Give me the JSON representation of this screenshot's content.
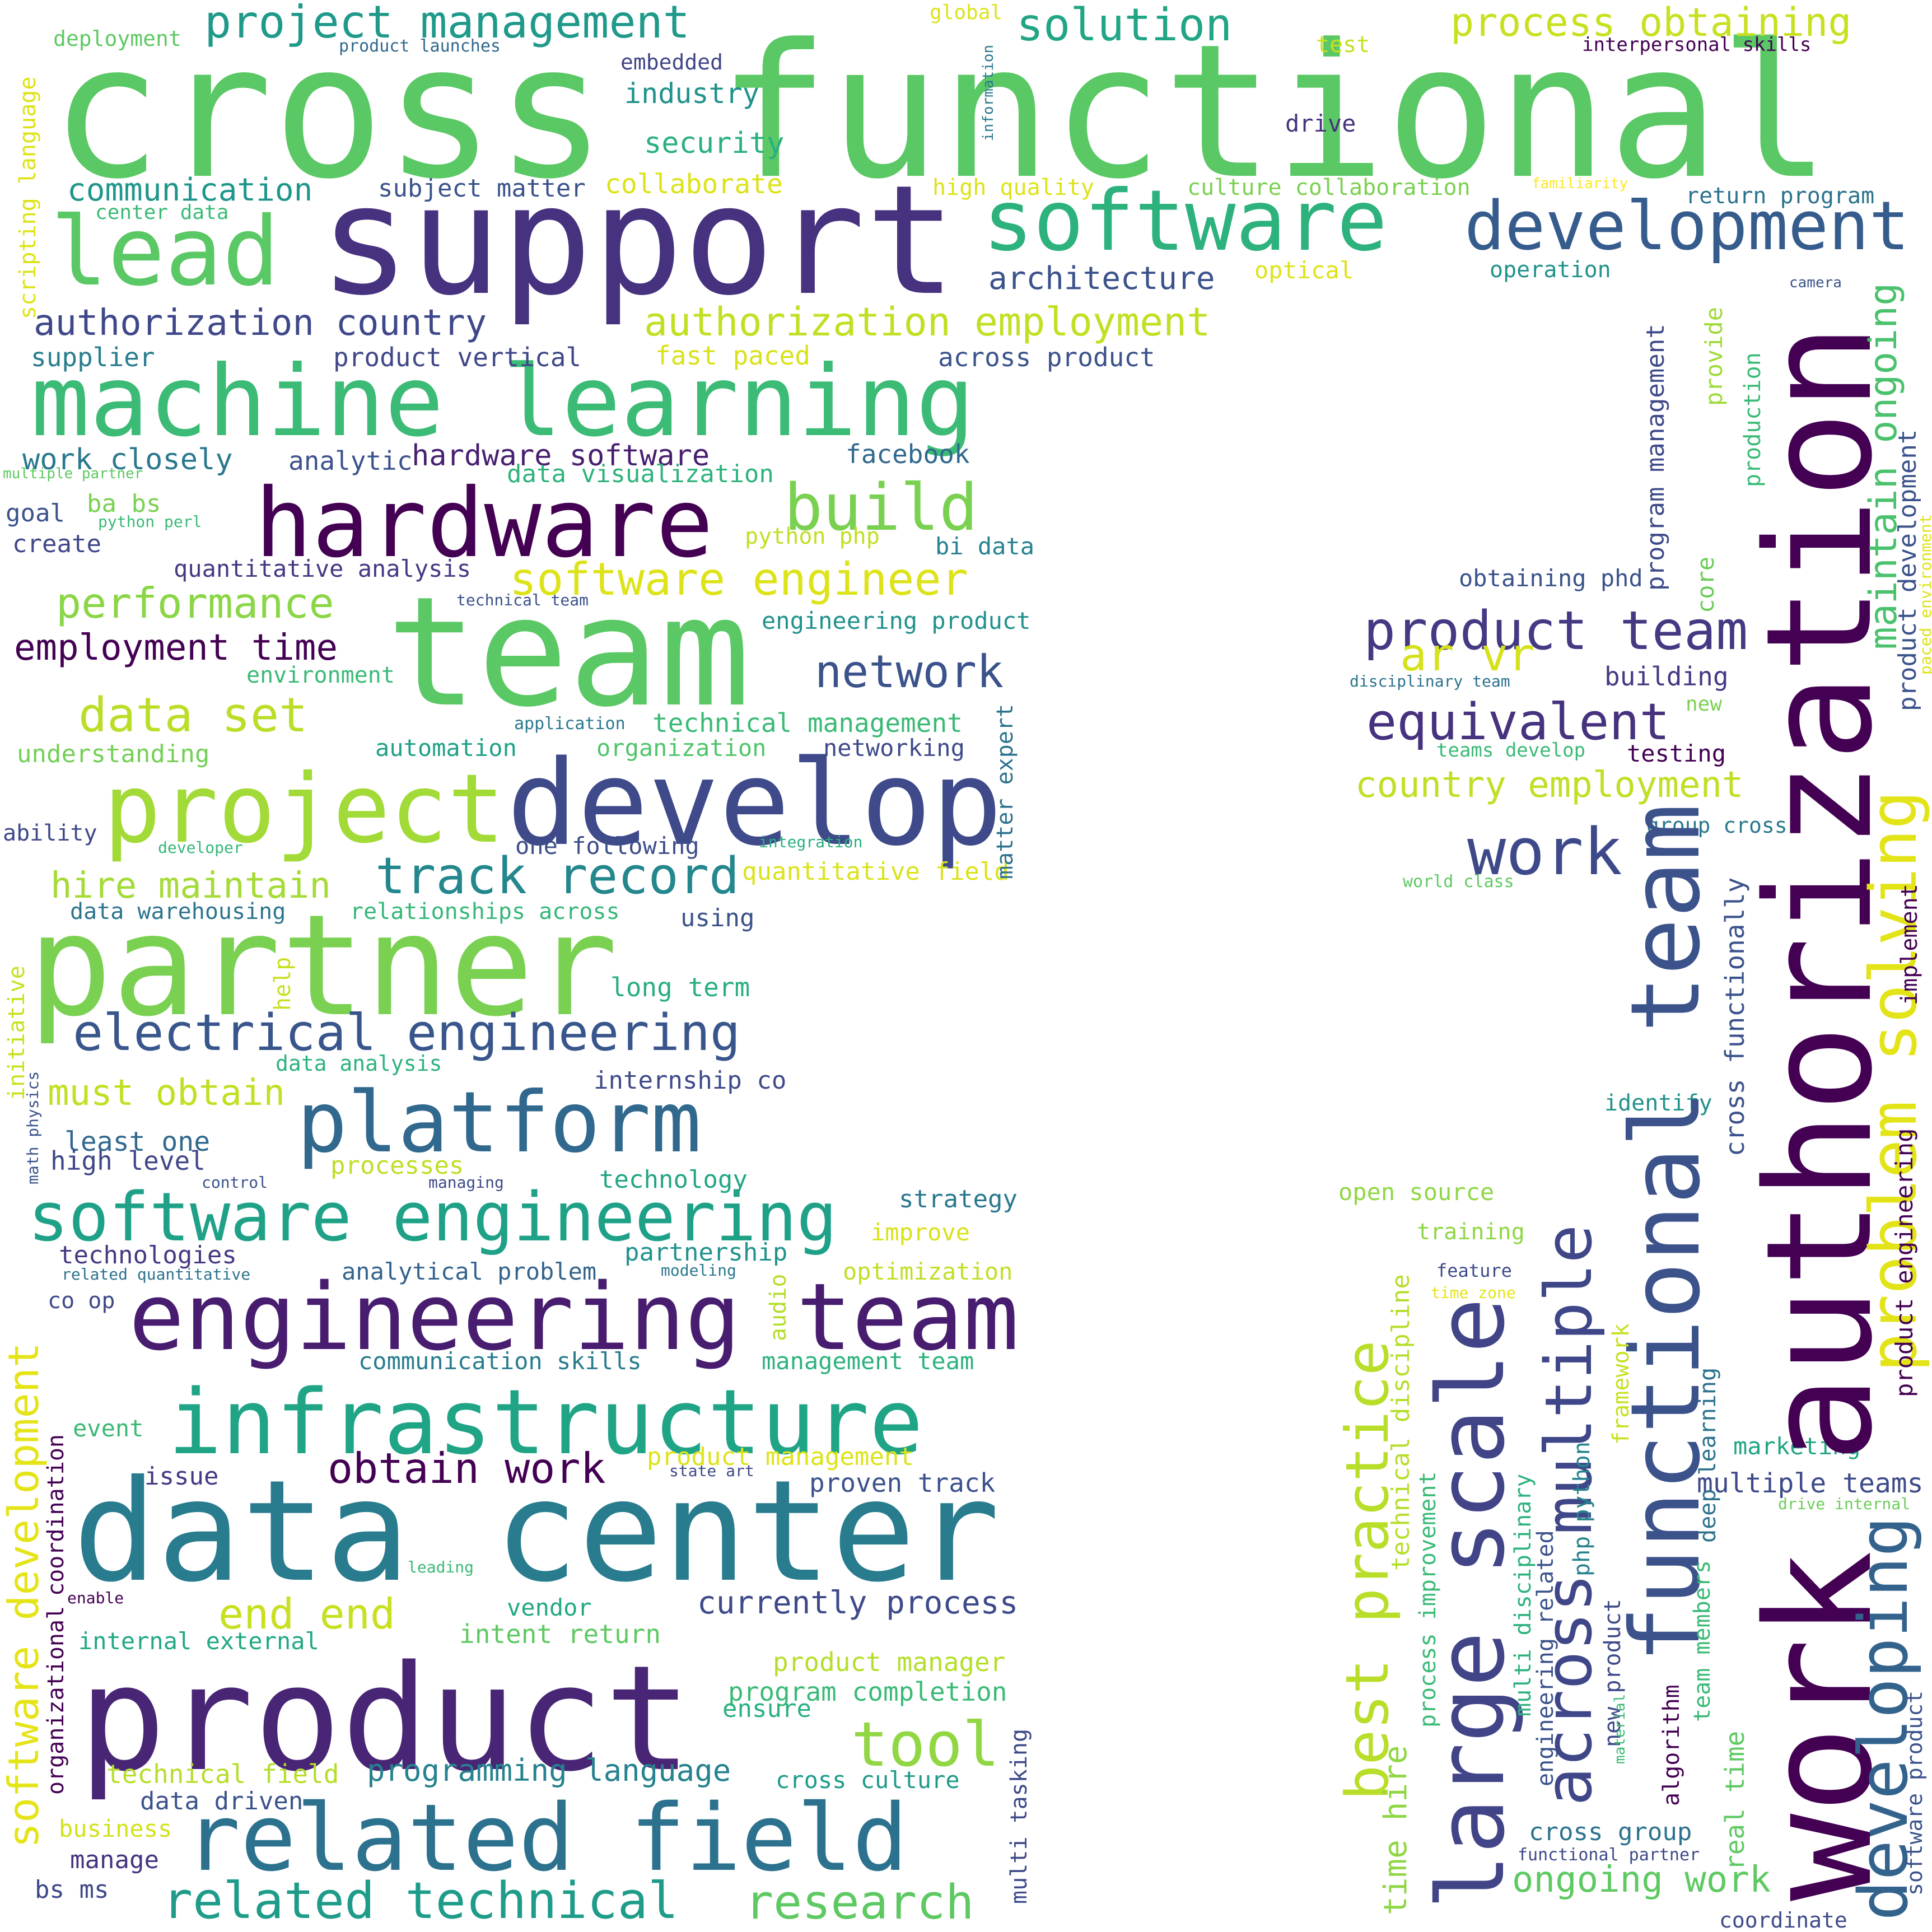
{
  "words": [
    {
      "text": "cross functional",
      "color": "#5ac864"
    },
    {
      "text": "support",
      "color": "#46327e"
    },
    {
      "text": "software",
      "color": "#2db27d"
    },
    {
      "text": "development",
      "color": "#365c8d"
    },
    {
      "text": "lead",
      "color": "#5ac864"
    },
    {
      "text": "project management",
      "color": "#1f9a8a"
    },
    {
      "text": "solution",
      "color": "#21a585"
    },
    {
      "text": "process obtaining",
      "color": "#c8e020"
    },
    {
      "text": "machine learning",
      "color": "#3bbb75"
    },
    {
      "text": "hardware",
      "color": "#440154"
    },
    {
      "text": "build",
      "color": "#7ad151"
    },
    {
      "text": "team",
      "color": "#5ac864"
    },
    {
      "text": "partner",
      "color": "#7ad151"
    },
    {
      "text": "develop",
      "color": "#3e4a89"
    },
    {
      "text": "project",
      "color": "#a2da37"
    },
    {
      "text": "platform",
      "color": "#31688e"
    },
    {
      "text": "software engineering",
      "color": "#1fa188"
    },
    {
      "text": "engineering team",
      "color": "#481d6f"
    },
    {
      "text": "infrastructure",
      "color": "#20a486"
    },
    {
      "text": "data center",
      "color": "#287c8e"
    },
    {
      "text": "product",
      "color": "#482575"
    },
    {
      "text": "related field",
      "color": "#2c728e"
    },
    {
      "text": "related technical",
      "color": "#1e9c89"
    },
    {
      "text": "research",
      "color": "#5ec962"
    },
    {
      "text": "work authorization",
      "color": "#440154"
    },
    {
      "text": "functional team",
      "color": "#3b528b"
    },
    {
      "text": "large scale",
      "color": "#414487"
    },
    {
      "text": "across multiple",
      "color": "#3f4788"
    },
    {
      "text": "best practice",
      "color": "#b8de29"
    },
    {
      "text": "problem solving",
      "color": "#e3e418"
    },
    {
      "text": "developing",
      "color": "#33638d"
    },
    {
      "text": "product team",
      "color": "#443a83"
    },
    {
      "text": "equivalent",
      "color": "#46327e"
    },
    {
      "text": "work",
      "color": "#3e4989"
    },
    {
      "text": "network",
      "color": "#3b528b"
    },
    {
      "text": "track record",
      "color": "#24878e"
    },
    {
      "text": "electrical engineering",
      "color": "#39568c"
    },
    {
      "text": "software engineer",
      "color": "#dde318"
    },
    {
      "text": "authorization employment",
      "color": "#c2df23"
    },
    {
      "text": "authorization country",
      "color": "#3f4889"
    },
    {
      "text": "data set",
      "color": "#bade28"
    },
    {
      "text": "performance",
      "color": "#8bd646"
    },
    {
      "text": "employment time",
      "color": "#440154"
    },
    {
      "text": "hire maintain",
      "color": "#a5db36"
    },
    {
      "text": "tool",
      "color": "#90d743"
    },
    {
      "text": "obtain work",
      "color": "#440154"
    },
    {
      "text": "end end",
      "color": "#c8e020"
    },
    {
      "text": "software development",
      "color": "#e5e419"
    },
    {
      "text": "ongoing work",
      "color": "#5ec962"
    },
    {
      "text": "country employment",
      "color": "#c0df25"
    },
    {
      "text": "maintain ongoing",
      "color": "#4ac16d"
    },
    {
      "text": "ar vr",
      "color": "#d5e21a"
    },
    {
      "text": "currently process",
      "color": "#3e4a89"
    },
    {
      "text": "must obtain",
      "color": "#c2df23"
    },
    {
      "text": "architecture",
      "color": "#3b528b"
    },
    {
      "text": "communication",
      "color": "#1f968b"
    },
    {
      "text": "security",
      "color": "#2ab07f"
    },
    {
      "text": "industry",
      "color": "#20928c"
    },
    {
      "text": "collaborate",
      "color": "#dde318"
    },
    {
      "text": "product vertical",
      "color": "#3f4788"
    },
    {
      "text": "fast paced",
      "color": "#d8e219"
    },
    {
      "text": "across product",
      "color": "#3b528b"
    },
    {
      "text": "supplier",
      "color": "#287d8e"
    },
    {
      "text": "work closely",
      "color": "#2a788e"
    },
    {
      "text": "analytic",
      "color": "#3b528b"
    },
    {
      "text": "hardware software",
      "color": "#481f70"
    },
    {
      "text": "data visualization",
      "color": "#2eb37c"
    },
    {
      "text": "facebook",
      "color": "#31688e"
    },
    {
      "text": "goal",
      "color": "#3b528b"
    },
    {
      "text": "ba bs",
      "color": "#7ad151"
    },
    {
      "text": "create",
      "color": "#404688"
    },
    {
      "text": "python php",
      "color": "#c0df25"
    },
    {
      "text": "bi data",
      "color": "#26828e"
    },
    {
      "text": "quantitative analysis",
      "color": "#443983"
    },
    {
      "text": "engineering product",
      "color": "#21918c"
    },
    {
      "text": "environment",
      "color": "#3aba76"
    },
    {
      "text": "technical management",
      "color": "#3aba76"
    },
    {
      "text": "understanding",
      "color": "#73d056"
    },
    {
      "text": "automation",
      "color": "#1fa088"
    },
    {
      "text": "organization",
      "color": "#50c46a"
    },
    {
      "text": "networking",
      "color": "#3e4a89"
    },
    {
      "text": "ability",
      "color": "#3e4989"
    },
    {
      "text": "one following",
      "color": "#3d4e8a"
    },
    {
      "text": "quantitative field",
      "color": "#dae319"
    },
    {
      "text": "data warehousing",
      "color": "#2b748e"
    },
    {
      "text": "relationships across",
      "color": "#35b779"
    },
    {
      "text": "using",
      "color": "#3b528b"
    },
    {
      "text": "long term",
      "color": "#29af7f"
    },
    {
      "text": "data analysis",
      "color": "#2db27d"
    },
    {
      "text": "internship co",
      "color": "#3e4a89"
    },
    {
      "text": "least one",
      "color": "#31688e"
    },
    {
      "text": "high level",
      "color": "#404688"
    },
    {
      "text": "processes",
      "color": "#bddf26"
    },
    {
      "text": "technology",
      "color": "#21a685"
    },
    {
      "text": "technologies",
      "color": "#443983"
    },
    {
      "text": "strategy",
      "color": "#2a788e"
    },
    {
      "text": "improve",
      "color": "#d8e219"
    },
    {
      "text": "partnership",
      "color": "#20928c"
    },
    {
      "text": "optimization",
      "color": "#c0df25"
    },
    {
      "text": "analytical problem",
      "color": "#33638d"
    },
    {
      "text": "co op",
      "color": "#3e4a89"
    },
    {
      "text": "communication skills",
      "color": "#287c8e"
    },
    {
      "text": "management team",
      "color": "#2db27d"
    },
    {
      "text": "event",
      "color": "#3aba76"
    },
    {
      "text": "issue",
      "color": "#443983"
    },
    {
      "text": "product management",
      "color": "#dde318"
    },
    {
      "text": "proven track",
      "color": "#3b528b"
    },
    {
      "text": "vendor",
      "color": "#22a884"
    },
    {
      "text": "intent return",
      "color": "#5ec962"
    },
    {
      "text": "internal external",
      "color": "#22a884"
    },
    {
      "text": "product manager",
      "color": "#b5de2b"
    },
    {
      "text": "program completion",
      "color": "#3aba76"
    },
    {
      "text": "ensure",
      "color": "#2ab07f"
    },
    {
      "text": "technical field",
      "color": "#b5de2b"
    },
    {
      "text": "programming language",
      "color": "#26828e"
    },
    {
      "text": "cross culture",
      "color": "#1f9a8a"
    },
    {
      "text": "data driven",
      "color": "#3b528b"
    },
    {
      "text": "business",
      "color": "#d2e21b"
    },
    {
      "text": "manage",
      "color": "#46337f"
    },
    {
      "text": "bs ms",
      "color": "#3f4788"
    },
    {
      "text": "subject matter",
      "color": "#3b528b"
    },
    {
      "text": "embedded",
      "color": "#404688"
    },
    {
      "text": "drive",
      "color": "#46327e"
    },
    {
      "text": "high quality",
      "color": "#dde318"
    },
    {
      "text": "culture collaboration",
      "color": "#7ad151"
    },
    {
      "text": "return program",
      "color": "#2c728e"
    },
    {
      "text": "operation",
      "color": "#21918c"
    },
    {
      "text": "optical",
      "color": "#dde318"
    },
    {
      "text": "interpersonal skills",
      "color": "#440154"
    },
    {
      "text": "deployment",
      "color": "#5ec962"
    },
    {
      "text": "product launches",
      "color": "#31688e"
    },
    {
      "text": "global",
      "color": "#dde318"
    },
    {
      "text": "test",
      "color": "#c8e020"
    },
    {
      "text": "familiarity",
      "color": "#fde725"
    },
    {
      "text": "center data",
      "color": "#3aba76"
    },
    {
      "text": "camera",
      "color": "#3b528b"
    },
    {
      "text": "multiple partner",
      "color": "#5ec962"
    },
    {
      "text": "python perl",
      "color": "#3aba76"
    },
    {
      "text": "technical team",
      "color": "#3b528b"
    },
    {
      "text": "application",
      "color": "#2a788e"
    },
    {
      "text": "developer",
      "color": "#35b779"
    },
    {
      "text": "integration",
      "color": "#29af7f"
    },
    {
      "text": "control",
      "color": "#3b528b"
    },
    {
      "text": "managing",
      "color": "#3e4a89"
    },
    {
      "text": "related quantitative",
      "color": "#2c728e"
    },
    {
      "text": "modeling",
      "color": "#2a788e"
    },
    {
      "text": "state art",
      "color": "#3e4a89"
    },
    {
      "text": "leading",
      "color": "#3aba76"
    },
    {
      "text": "enable",
      "color": "#440154"
    },
    {
      "text": "obtaining phd",
      "color": "#3b528b"
    },
    {
      "text": "disciplinary team",
      "color": "#2c728e"
    },
    {
      "text": "building",
      "color": "#443983"
    },
    {
      "text": "new",
      "color": "#7ad151"
    },
    {
      "text": "teams develop",
      "color": "#3aba76"
    },
    {
      "text": "testing",
      "color": "#440154"
    },
    {
      "text": "group cross",
      "color": "#2a788e"
    },
    {
      "text": "world class",
      "color": "#5ec962"
    },
    {
      "text": "identify",
      "color": "#21918c"
    },
    {
      "text": "open source",
      "color": "#8fd744"
    },
    {
      "text": "training",
      "color": "#8fd744"
    },
    {
      "text": "feature",
      "color": "#3e4a89"
    },
    {
      "text": "time zone",
      "color": "#e5e419"
    },
    {
      "text": "marketing",
      "color": "#21a585"
    },
    {
      "text": "multiple teams",
      "color": "#3e4a89"
    },
    {
      "text": "drive internal",
      "color": "#6ccd5a"
    },
    {
      "text": "cross group",
      "color": "#2c728e"
    },
    {
      "text": "functional partner",
      "color": "#3e4a89"
    },
    {
      "text": "coordinate",
      "color": "#3e4a89"
    },
    {
      "text": "scripting language",
      "color": "#dde318"
    },
    {
      "text": "information",
      "color": "#2a788e"
    },
    {
      "text": "program management",
      "color": "#3e4a89"
    },
    {
      "text": "provide",
      "color": "#a0da39"
    },
    {
      "text": "core",
      "color": "#6ccd5a"
    },
    {
      "text": "production",
      "color": "#3aba76"
    },
    {
      "text": "product development",
      "color": "#3b528b"
    },
    {
      "text": "paced environment",
      "color": "#dde318"
    },
    {
      "text": "cross functionally",
      "color": "#3b528b"
    },
    {
      "text": "implement",
      "color": "#440154"
    },
    {
      "text": "product engineering",
      "color": "#440154"
    },
    {
      "text": "technical discipline",
      "color": "#b5de2b"
    },
    {
      "text": "process improvement",
      "color": "#3aba76"
    },
    {
      "text": "time hire",
      "color": "#8fd744"
    },
    {
      "text": "multi disciplinary",
      "color": "#2db27d"
    },
    {
      "text": "engineering related",
      "color": "#3b528b"
    },
    {
      "text": "php python",
      "color": "#26828e"
    },
    {
      "text": "new product",
      "color": "#3e4a89"
    },
    {
      "text": "framework",
      "color": "#c8e020"
    },
    {
      "text": "deep learning",
      "color": "#2c728e"
    },
    {
      "text": "algorithm",
      "color": "#440154"
    },
    {
      "text": "team members",
      "color": "#3aba76"
    },
    {
      "text": "real time",
      "color": "#5ec962"
    },
    {
      "text": "material",
      "color": "#3aba76"
    },
    {
      "text": "software product",
      "color": "#3b528b"
    },
    {
      "text": "initiative",
      "color": "#c8e020"
    },
    {
      "text": "help",
      "color": "#c8e020"
    },
    {
      "text": "math physics",
      "color": "#3b528b"
    },
    {
      "text": "matter expert",
      "color": "#2c728e"
    },
    {
      "text": "audio",
      "color": "#b5de2b"
    },
    {
      "text": "coordination",
      "color": "#440154"
    },
    {
      "text": "organizational",
      "color": "#440154"
    },
    {
      "text": "multi tasking",
      "color": "#3e4a89"
    }
  ]
}
